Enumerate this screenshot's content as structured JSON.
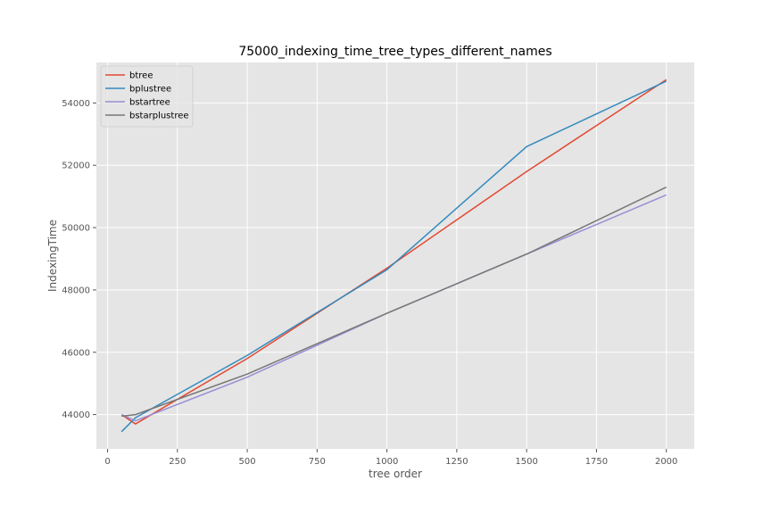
{
  "chart_data": {
    "type": "line",
    "title": "75000_indexing_time_tree_types_different_names",
    "xlabel": "tree order",
    "ylabel": "IndexingTime",
    "xlim": [
      -40,
      2100
    ],
    "ylim": [
      42900,
      55300
    ],
    "xticks": [
      0,
      250,
      500,
      750,
      1000,
      1250,
      1500,
      1750,
      2000
    ],
    "yticks": [
      44000,
      46000,
      48000,
      50000,
      52000,
      54000
    ],
    "xtick_labels": [
      "0",
      "250",
      "500",
      "750",
      "1000",
      "1250",
      "1500",
      "1750",
      "2000"
    ],
    "ytick_labels": [
      "44000",
      "46000",
      "48000",
      "50000",
      "52000",
      "54000"
    ],
    "grid": true,
    "legend_position": "top-left",
    "x": [
      50,
      100,
      500,
      1000,
      1500,
      2000
    ],
    "series": [
      {
        "name": "btree",
        "color": "#E24A33",
        "values": [
          44000,
          43700,
          45800,
          48700,
          51800,
          54750
        ]
      },
      {
        "name": "bplustree",
        "color": "#348ABD",
        "values": [
          43450,
          43900,
          45900,
          48650,
          52600,
          54700
        ]
      },
      {
        "name": "bstartree",
        "color": "#988ED5",
        "values": [
          44000,
          43800,
          45200,
          47250,
          49150,
          51050
        ]
      },
      {
        "name": "bstarplustree",
        "color": "#777777",
        "values": [
          43950,
          44000,
          45300,
          47250,
          49150,
          51300
        ]
      }
    ]
  }
}
